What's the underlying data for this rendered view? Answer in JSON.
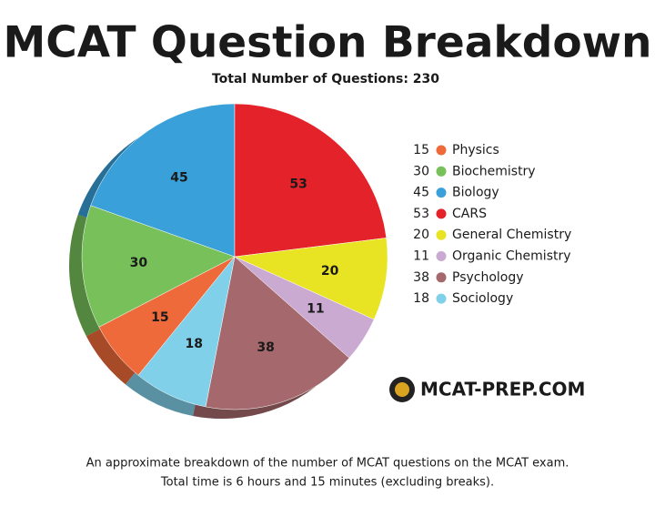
{
  "chart_data": {
    "type": "pie",
    "title": "MCAT Question Breakdown",
    "subtitle": "Total Number of Questions: 230",
    "categories": [
      "Physics",
      "Biochemistry",
      "Biology",
      "CARS",
      "General Chemistry",
      "Organic Chemistry",
      "Psychology",
      "Sociology"
    ],
    "values": [
      15,
      30,
      45,
      53,
      20,
      11,
      38,
      18
    ],
    "colors": [
      "#ef6a3a",
      "#78c05a",
      "#3aa0da",
      "#e42229",
      "#e8e424",
      "#cbaad2",
      "#a5696d",
      "#80d0ea"
    ],
    "logo": "MCAT-PREP.COM",
    "caption": [
      "An approximate breakdown of the number of MCAT questions on the MCAT exam.",
      "Total time is 6 hours and 15 minutes (excluding breaks)."
    ]
  }
}
